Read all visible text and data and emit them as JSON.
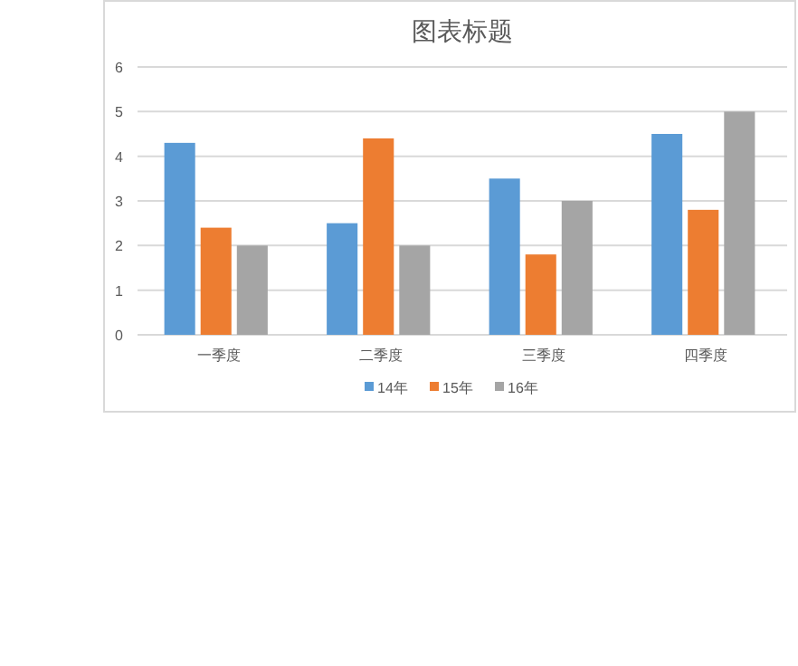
{
  "chart_data": {
    "type": "bar",
    "title": "图表标题",
    "categories": [
      "一季度",
      "二季度",
      "三季度",
      "四季度"
    ],
    "series": [
      {
        "name": "14年",
        "color": "#5b9bd5",
        "values": [
          4.3,
          2.5,
          3.5,
          4.5
        ]
      },
      {
        "name": "15年",
        "color": "#ed7d31",
        "values": [
          2.4,
          4.4,
          1.8,
          2.8
        ]
      },
      {
        "name": "16年",
        "color": "#a5a5a5",
        "values": [
          2,
          2,
          3,
          5
        ]
      }
    ],
    "ylim": [
      0,
      6
    ],
    "yticks": [
      0,
      1,
      2,
      3,
      4,
      5,
      6
    ],
    "grid": "y",
    "legend": "bottom"
  }
}
